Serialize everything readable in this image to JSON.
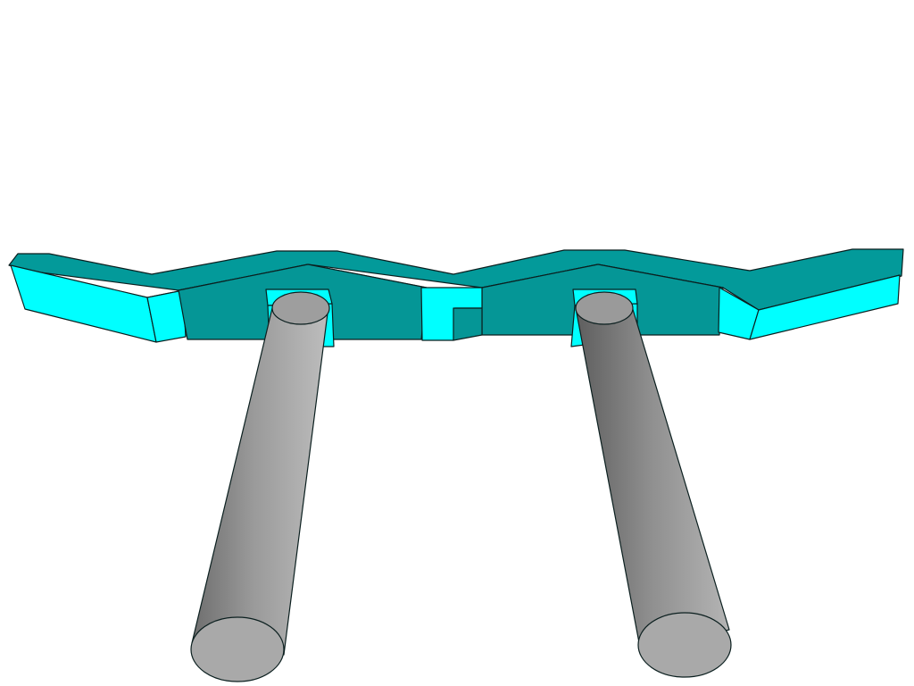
{
  "scene": {
    "description_kind": "3d-model-render",
    "colors": {
      "background": "#ffffff",
      "top_face": "#039a9a",
      "front_face_cyan": "#00ffff",
      "dark_face": "#059696",
      "edge": "#0b1f1f",
      "cylinder_light": "#b8b8b8",
      "cylinder_mid": "#8c8c8c",
      "cylinder_dark": "#5a5a5a",
      "cylinder_cap": "#a6a6a6"
    },
    "parts": [
      {
        "name": "zigzag-beam",
        "kind": "prism"
      },
      {
        "name": "mount-block-left",
        "kind": "box"
      },
      {
        "name": "mount-block-right",
        "kind": "box"
      },
      {
        "name": "cylinder-left",
        "kind": "cylinder"
      },
      {
        "name": "cylinder-right",
        "kind": "cylinder"
      }
    ]
  }
}
